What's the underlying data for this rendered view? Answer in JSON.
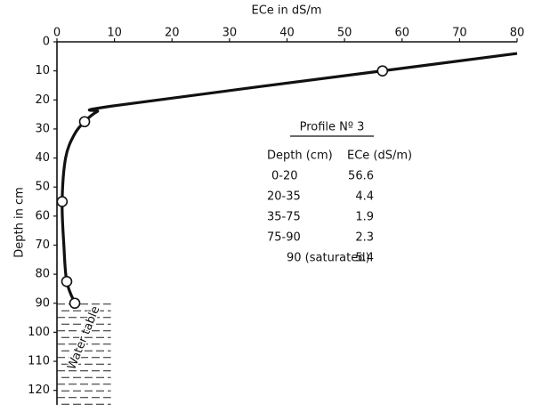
{
  "chart_data": {
    "type": "line",
    "title": "ECe in dS/m",
    "y_label": "Depth in cm",
    "xlim": [
      0,
      80
    ],
    "xticks": [
      0,
      10,
      20,
      30,
      40,
      50,
      60,
      70,
      80
    ],
    "ylim": [
      0,
      125
    ],
    "yticks": [
      0,
      10,
      20,
      30,
      40,
      50,
      60,
      70,
      80,
      90,
      100,
      110,
      120
    ],
    "y_inverted": true,
    "x_axis_top": true,
    "color": "#111111",
    "series": [
      {
        "x": [
          80,
          56.6,
          10,
          7,
          4.8,
          3,
          1.5,
          0.9,
          1.2,
          1.7,
          3.1
        ],
        "values": [
          4,
          10,
          22,
          24,
          27.5,
          32,
          40,
          55,
          70,
          82.5,
          90
        ],
        "line": true,
        "markers": false
      },
      {
        "x": [
          56.6,
          4.8,
          0.9,
          1.7,
          3.1
        ],
        "values": [
          10,
          27.5,
          55,
          82.5,
          90
        ],
        "line": false,
        "markers": true
      }
    ],
    "water_table": {
      "label": "Water table",
      "top": 90,
      "xmax": 9.4
    },
    "table": {
      "title": "Profile Nº 3",
      "header": [
        "Depth (cm)",
        "ECe (dS/m)"
      ],
      "rows": [
        [
          "0-20",
          56.6
        ],
        [
          "20-35",
          4.4
        ],
        [
          "35-75",
          1.9
        ],
        [
          "75-90",
          2.3
        ],
        [
          "90 (saturated)",
          5.4
        ]
      ]
    }
  }
}
